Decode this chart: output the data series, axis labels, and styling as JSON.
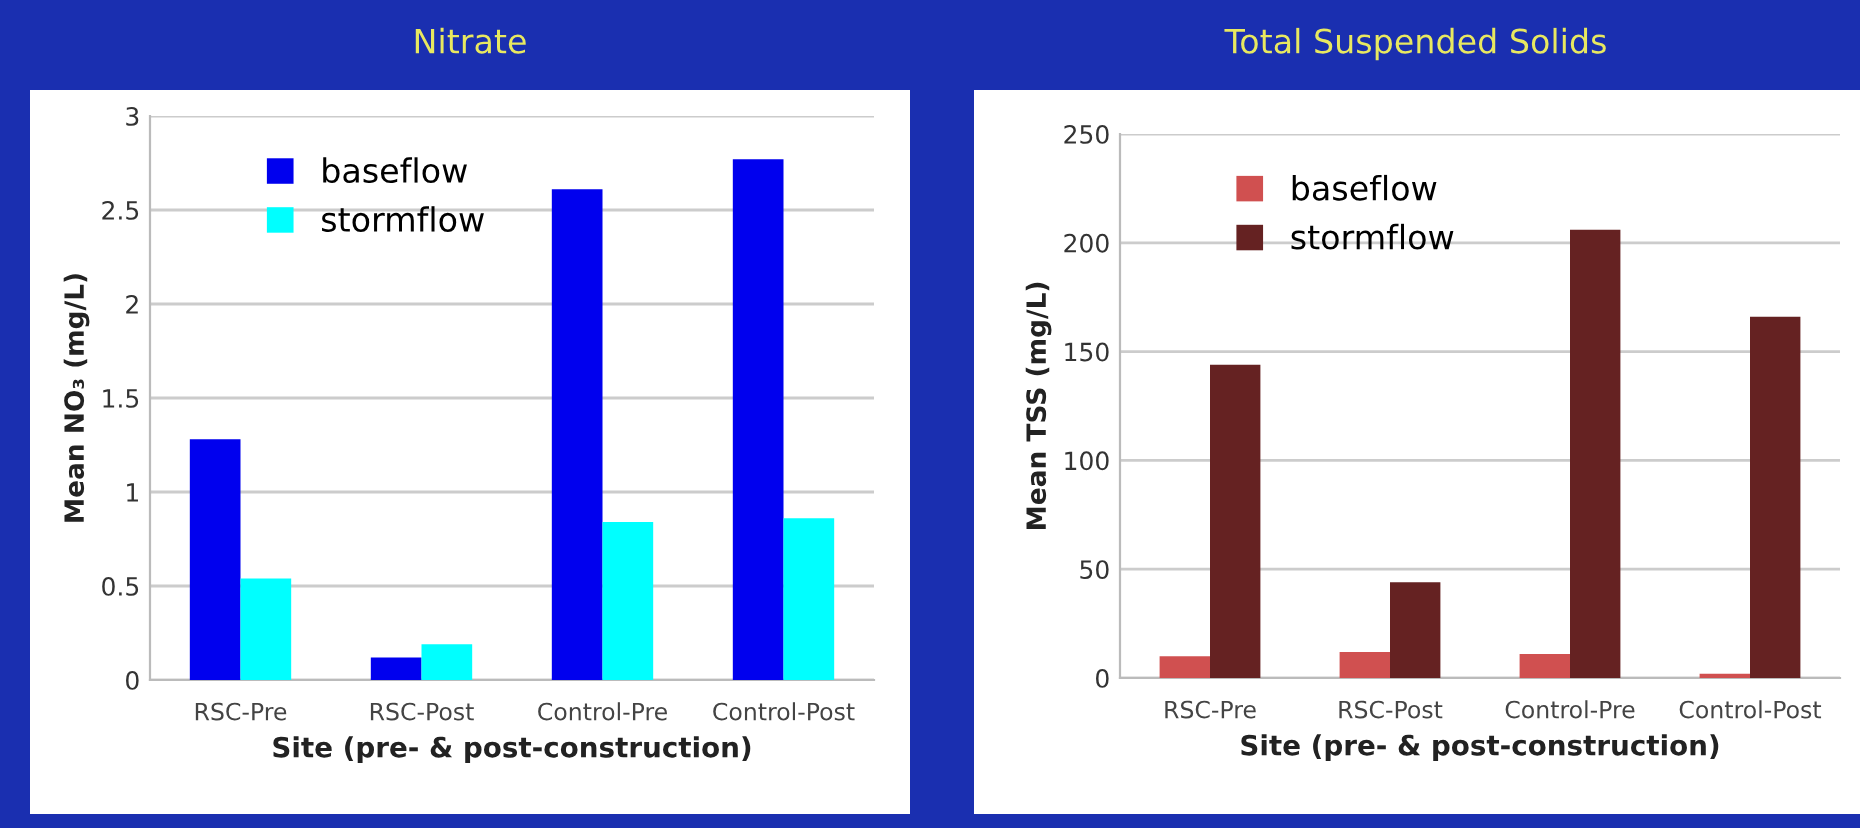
{
  "chart_data": [
    {
      "type": "bar",
      "title": "Nitrate",
      "xlabel": "Site (pre- & post-construction)",
      "ylabel": "Mean NO₃ (mg/L)",
      "categories": [
        "RSC-Pre",
        "RSC-Post",
        "Control-Pre",
        "Control-Post"
      ],
      "series": [
        {
          "name": "baseflow",
          "color": "#0000ee",
          "values": [
            1.28,
            0.12,
            2.61,
            2.77
          ]
        },
        {
          "name": "stormflow",
          "color": "#00ffff",
          "values": [
            0.54,
            0.19,
            0.84,
            0.86
          ]
        }
      ],
      "ylim": [
        0,
        3
      ],
      "yticks": [
        0,
        0.5,
        1,
        1.5,
        2,
        2.5,
        3
      ],
      "grid": "y",
      "legend": "top left"
    },
    {
      "type": "bar",
      "title": "Total Suspended Solids",
      "xlabel": "Site (pre- & post-construction)",
      "ylabel": "Mean TSS (mg/L)",
      "categories": [
        "RSC-Pre",
        "RSC-Post",
        "Control-Pre",
        "Control-Post"
      ],
      "series": [
        {
          "name": "baseflow",
          "color": "#d05050",
          "values": [
            10,
            12,
            11,
            2
          ]
        },
        {
          "name": "stormflow",
          "color": "#652222",
          "values": [
            144,
            44,
            206,
            166
          ]
        }
      ],
      "ylim": [
        0,
        250
      ],
      "yticks": [
        0,
        50,
        100,
        150,
        200,
        250
      ],
      "grid": "y",
      "legend": "top left"
    }
  ]
}
